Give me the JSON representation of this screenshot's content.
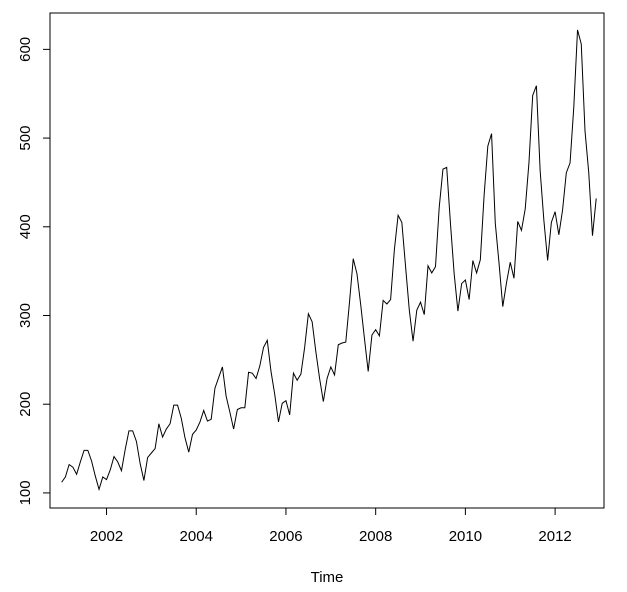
{
  "chart_data": {
    "type": "line",
    "title": "",
    "xlabel": "Time",
    "ylabel": "",
    "xlim": [
      2000.74,
      2013.09
    ],
    "ylim": [
      83,
      641
    ],
    "x_ticks": [
      2002,
      2004,
      2006,
      2008,
      2010,
      2012
    ],
    "y_ticks": [
      100,
      200,
      300,
      400,
      500,
      600
    ],
    "grid": false,
    "legend": "none",
    "line_color": "#000000",
    "series": [
      {
        "start": [
          2001,
          1
        ],
        "frequency": 12,
        "values": [
          112,
          118,
          132,
          129,
          121,
          135,
          148,
          148,
          136,
          119,
          104,
          118,
          115,
          126,
          141,
          135,
          125,
          149,
          170,
          170,
          158,
          133,
          114,
          140,
          145,
          150,
          178,
          163,
          172,
          178,
          199,
          199,
          184,
          162,
          146,
          166,
          171,
          180,
          193,
          181,
          183,
          218,
          230,
          242,
          209,
          191,
          172,
          194,
          196,
          196,
          236,
          235,
          229,
          243,
          264,
          272,
          237,
          211,
          180,
          201,
          204,
          188,
          235,
          227,
          234,
          264,
          302,
          293,
          259,
          229,
          203,
          229,
          242,
          233,
          267,
          269,
          270,
          315,
          364,
          347,
          312,
          274,
          237,
          278,
          284,
          277,
          317,
          313,
          318,
          374,
          413,
          405,
          355,
          306,
          271,
          306,
          315,
          301,
          356,
          348,
          355,
          422,
          465,
          467,
          404,
          347,
          305,
          336,
          340,
          318,
          362,
          348,
          363,
          435,
          491,
          505,
          404,
          359,
          310,
          337,
          360,
          342,
          406,
          396,
          420,
          472,
          548,
          559,
          463,
          407,
          362,
          405,
          417,
          391,
          419,
          461,
          472,
          535,
          622,
          606,
          508,
          461,
          390,
          432
        ]
      }
    ]
  }
}
